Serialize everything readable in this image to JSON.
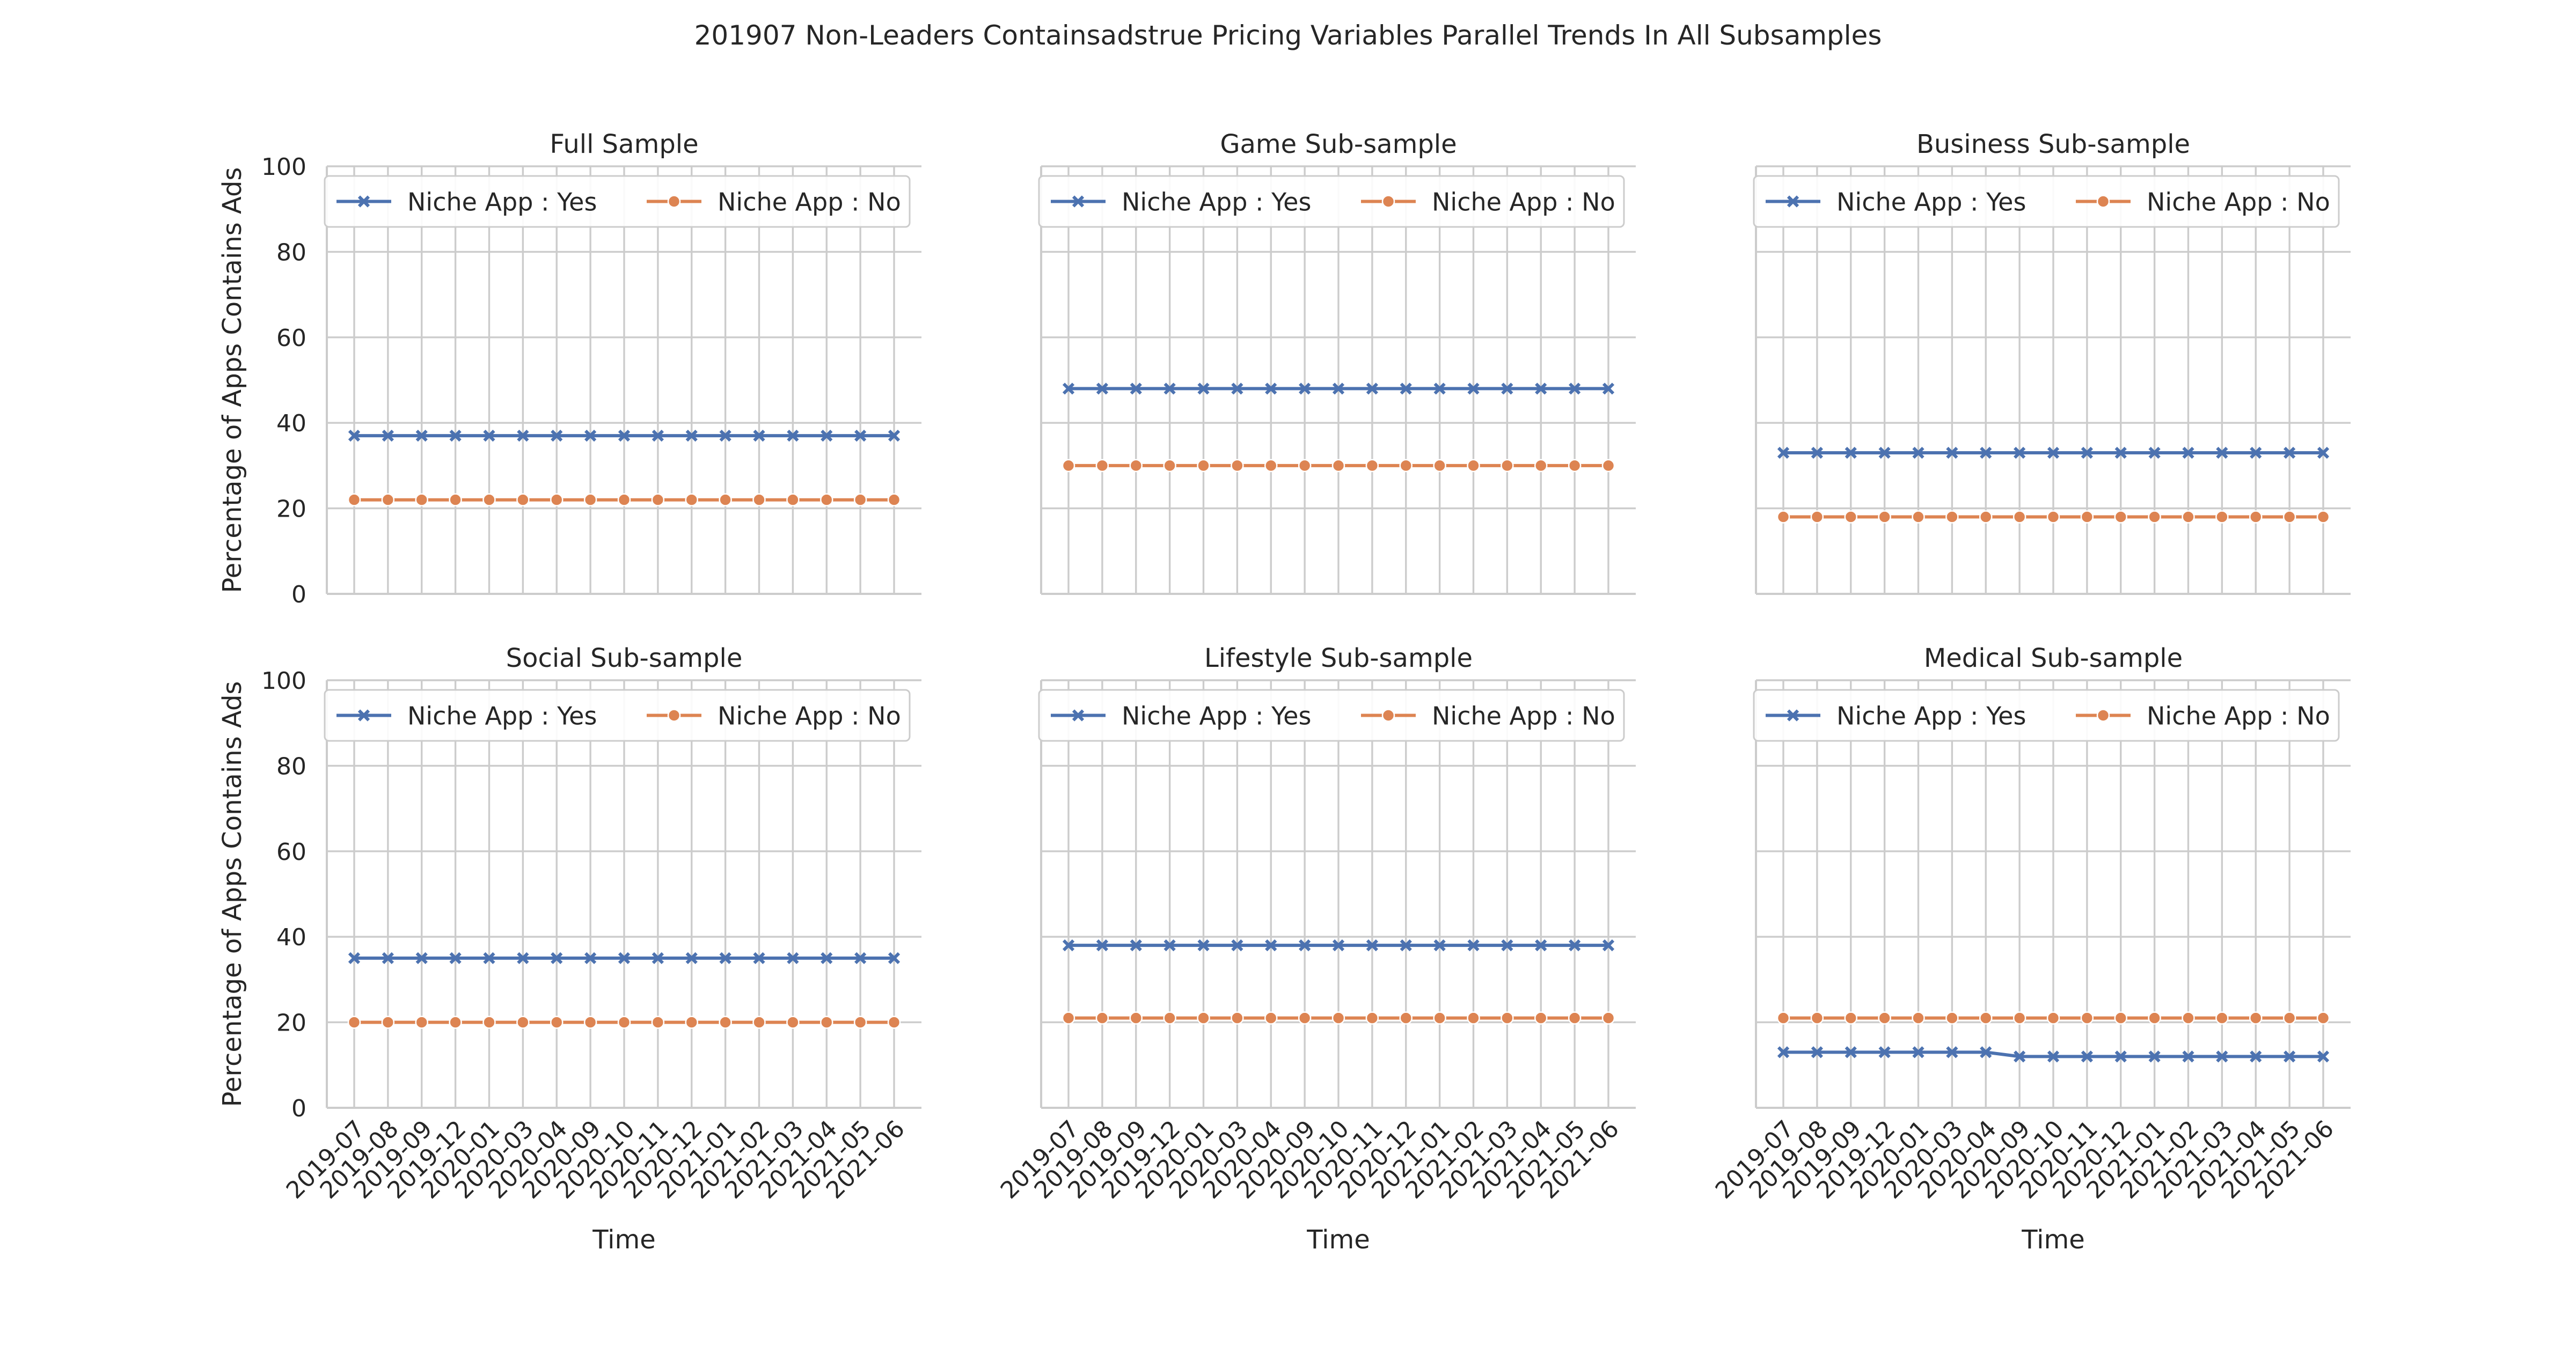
{
  "figure": {
    "title": "201907 Non-Leaders Containsadstrue Pricing Variables Parallel Trends In All Subsamples",
    "colors": {
      "yes": "#4c72b0",
      "no": "#dd8452",
      "grid": "#cccccc",
      "text": "#262626"
    }
  },
  "chart_data": [
    {
      "type": "line",
      "title": "Full Sample",
      "xlabel": "",
      "ylabel": "Percentage of Apps Contains Ads",
      "ylim": [
        0,
        100
      ],
      "yticks": [
        "0",
        "20",
        "40",
        "60",
        "80",
        "100"
      ],
      "categories": [
        "2019-07",
        "2019-08",
        "2019-09",
        "2019-12",
        "2020-01",
        "2020-03",
        "2020-04",
        "2020-09",
        "2020-10",
        "2020-11",
        "2020-12",
        "2021-01",
        "2021-02",
        "2021-03",
        "2021-04",
        "2021-05",
        "2021-06"
      ],
      "show_xticklabels": false,
      "grid": true,
      "legend_position": "top-left",
      "series": [
        {
          "name": "Niche App : Yes",
          "marker": "x",
          "values": [
            37,
            37,
            37,
            37,
            37,
            37,
            37,
            37,
            37,
            37,
            37,
            37,
            37,
            37,
            37,
            37,
            37
          ]
        },
        {
          "name": "Niche App : No",
          "marker": "o",
          "values": [
            22,
            22,
            22,
            22,
            22,
            22,
            22,
            22,
            22,
            22,
            22,
            22,
            22,
            22,
            22,
            22,
            22
          ]
        }
      ]
    },
    {
      "type": "line",
      "title": "Game Sub-sample",
      "xlabel": "",
      "ylabel": "",
      "ylim": [
        0,
        100
      ],
      "yticks": [],
      "categories": [
        "2019-07",
        "2019-08",
        "2019-09",
        "2019-12",
        "2020-01",
        "2020-03",
        "2020-04",
        "2020-09",
        "2020-10",
        "2020-11",
        "2020-12",
        "2021-01",
        "2021-02",
        "2021-03",
        "2021-04",
        "2021-05",
        "2021-06"
      ],
      "show_xticklabels": false,
      "grid": true,
      "legend_position": "top-left",
      "series": [
        {
          "name": "Niche App : Yes",
          "marker": "x",
          "values": [
            48,
            48,
            48,
            48,
            48,
            48,
            48,
            48,
            48,
            48,
            48,
            48,
            48,
            48,
            48,
            48,
            48
          ]
        },
        {
          "name": "Niche App : No",
          "marker": "o",
          "values": [
            30,
            30,
            30,
            30,
            30,
            30,
            30,
            30,
            30,
            30,
            30,
            30,
            30,
            30,
            30,
            30,
            30
          ]
        }
      ]
    },
    {
      "type": "line",
      "title": "Business Sub-sample",
      "xlabel": "",
      "ylabel": "",
      "ylim": [
        0,
        100
      ],
      "yticks": [],
      "categories": [
        "2019-07",
        "2019-08",
        "2019-09",
        "2019-12",
        "2020-01",
        "2020-03",
        "2020-04",
        "2020-09",
        "2020-10",
        "2020-11",
        "2020-12",
        "2021-01",
        "2021-02",
        "2021-03",
        "2021-04",
        "2021-05",
        "2021-06"
      ],
      "show_xticklabels": false,
      "grid": true,
      "legend_position": "top-left",
      "series": [
        {
          "name": "Niche App : Yes",
          "marker": "x",
          "values": [
            33,
            33,
            33,
            33,
            33,
            33,
            33,
            33,
            33,
            33,
            33,
            33,
            33,
            33,
            33,
            33,
            33
          ]
        },
        {
          "name": "Niche App : No",
          "marker": "o",
          "values": [
            18,
            18,
            18,
            18,
            18,
            18,
            18,
            18,
            18,
            18,
            18,
            18,
            18,
            18,
            18,
            18,
            18
          ]
        }
      ]
    },
    {
      "type": "line",
      "title": "Social Sub-sample",
      "xlabel": "Time",
      "ylabel": "Percentage of Apps Contains Ads",
      "ylim": [
        0,
        100
      ],
      "yticks": [
        "0",
        "20",
        "40",
        "60",
        "80",
        "100"
      ],
      "categories": [
        "2019-07",
        "2019-08",
        "2019-09",
        "2019-12",
        "2020-01",
        "2020-03",
        "2020-04",
        "2020-09",
        "2020-10",
        "2020-11",
        "2020-12",
        "2021-01",
        "2021-02",
        "2021-03",
        "2021-04",
        "2021-05",
        "2021-06"
      ],
      "show_xticklabels": true,
      "grid": true,
      "legend_position": "top-left",
      "series": [
        {
          "name": "Niche App : Yes",
          "marker": "x",
          "values": [
            35,
            35,
            35,
            35,
            35,
            35,
            35,
            35,
            35,
            35,
            35,
            35,
            35,
            35,
            35,
            35,
            35
          ]
        },
        {
          "name": "Niche App : No",
          "marker": "o",
          "values": [
            20,
            20,
            20,
            20,
            20,
            20,
            20,
            20,
            20,
            20,
            20,
            20,
            20,
            20,
            20,
            20,
            20
          ]
        }
      ]
    },
    {
      "type": "line",
      "title": "Lifestyle Sub-sample",
      "xlabel": "Time",
      "ylabel": "",
      "ylim": [
        0,
        100
      ],
      "yticks": [],
      "categories": [
        "2019-07",
        "2019-08",
        "2019-09",
        "2019-12",
        "2020-01",
        "2020-03",
        "2020-04",
        "2020-09",
        "2020-10",
        "2020-11",
        "2020-12",
        "2021-01",
        "2021-02",
        "2021-03",
        "2021-04",
        "2021-05",
        "2021-06"
      ],
      "show_xticklabels": true,
      "grid": true,
      "legend_position": "top-left",
      "series": [
        {
          "name": "Niche App : Yes",
          "marker": "x",
          "values": [
            38,
            38,
            38,
            38,
            38,
            38,
            38,
            38,
            38,
            38,
            38,
            38,
            38,
            38,
            38,
            38,
            38
          ]
        },
        {
          "name": "Niche App : No",
          "marker": "o",
          "values": [
            21,
            21,
            21,
            21,
            21,
            21,
            21,
            21,
            21,
            21,
            21,
            21,
            21,
            21,
            21,
            21,
            21
          ]
        }
      ]
    },
    {
      "type": "line",
      "title": "Medical Sub-sample",
      "xlabel": "Time",
      "ylabel": "",
      "ylim": [
        0,
        100
      ],
      "yticks": [],
      "categories": [
        "2019-07",
        "2019-08",
        "2019-09",
        "2019-12",
        "2020-01",
        "2020-03",
        "2020-04",
        "2020-09",
        "2020-10",
        "2020-11",
        "2020-12",
        "2021-01",
        "2021-02",
        "2021-03",
        "2021-04",
        "2021-05",
        "2021-06"
      ],
      "show_xticklabels": true,
      "grid": true,
      "legend_position": "top-left",
      "series": [
        {
          "name": "Niche App : Yes",
          "marker": "x",
          "values": [
            13,
            13,
            13,
            13,
            13,
            13,
            13,
            12,
            12,
            12,
            12,
            12,
            12,
            12,
            12,
            12,
            12
          ]
        },
        {
          "name": "Niche App : No",
          "marker": "o",
          "values": [
            21,
            21,
            21,
            21,
            21,
            21,
            21,
            21,
            21,
            21,
            21,
            21,
            21,
            21,
            21,
            21,
            21
          ]
        }
      ]
    }
  ]
}
